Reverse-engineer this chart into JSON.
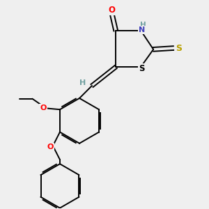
{
  "bg_color": "#efefef",
  "bond_color": "#000000",
  "bond_width": 1.4,
  "dbo": 0.07,
  "atom_colors": {
    "O": "#ff0000",
    "N": "#4040bb",
    "S_thio": "#b8a000",
    "S_ring": "#000000",
    "H": "#70a0a0",
    "C": "#000000"
  },
  "fs": 7.5
}
